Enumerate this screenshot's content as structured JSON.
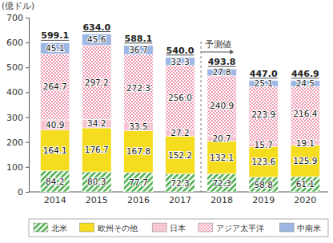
{
  "chart_data": {
    "type": "bar",
    "stacked": true,
    "data_labels": true,
    "grid": false,
    "legend": "bottom",
    "y_label": "(億ドル)",
    "categories": [
      "2014",
      "2015",
      "2016",
      "2017",
      "2018",
      "2019",
      "2020"
    ],
    "ylim": [
      0,
      700
    ],
    "yticks": [
      0,
      100,
      200,
      300,
      400,
      500,
      600,
      700
    ],
    "series": [
      {
        "name": "北米",
        "color": "#4cae4c",
        "values": [
          84.2,
          80.3,
          77.7,
          72.3,
          72.3,
          58.8,
          61.1
        ],
        "value_labels": [
          "84.2",
          "80.3",
          "77.7",
          "72.3",
          "72.3",
          "58.8",
          "61.1"
        ]
      },
      {
        "name": "欧州その他",
        "color": "#f5dc1e",
        "values": [
          164.1,
          176.7,
          167.8,
          152.2,
          132.1,
          123.6,
          125.9
        ],
        "value_labels": [
          "164.1",
          "176.7",
          "167.8",
          "152.2",
          "132.1",
          "123.6",
          "125.9"
        ]
      },
      {
        "name": "日本",
        "color": "#f9cbd6",
        "values": [
          40.9,
          34.2,
          33.5,
          27.2,
          20.7,
          15.7,
          19.1
        ],
        "value_labels": [
          "40.9",
          "34.2",
          "33.5",
          "27.2",
          "20.7",
          "15.7",
          "19.1"
        ]
      },
      {
        "name": "アジア太平洋",
        "color": "#f29bb2",
        "values": [
          264.7,
          297.2,
          272.3,
          256.0,
          240.9,
          223.9,
          216.4
        ],
        "value_labels": [
          "264.7",
          "297.2",
          "272.3",
          "256.0",
          "240.9",
          "223.9",
          "216.4"
        ]
      },
      {
        "name": "中南米",
        "color": "#9db6e3",
        "values": [
          45.1,
          45.6,
          36.7,
          32.3,
          27.8,
          25.1,
          24.5
        ],
        "value_labels": [
          "45.1",
          "45.6",
          "36.7",
          "32.3",
          "27.8",
          "25.1",
          "24.5"
        ]
      }
    ],
    "totals": [
      599.1,
      634.0,
      588.1,
      540.0,
      493.8,
      447.0,
      446.9
    ],
    "total_labels": [
      "599.1",
      "634.0",
      "588.1",
      "540.0",
      "493.8",
      "447.0",
      "446.9"
    ],
    "annotations": [
      {
        "text": "予測値",
        "x": "2018"
      }
    ]
  }
}
